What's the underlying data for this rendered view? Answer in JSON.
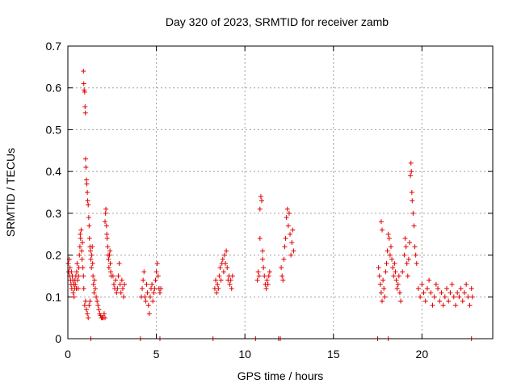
{
  "chart_data": {
    "type": "scatter",
    "title": "Day 320 of 2023, SRMTID for receiver zamb",
    "xlabel": "GPS time / hours",
    "ylabel": "SRMTID / TECUs",
    "xlim": [
      0,
      24
    ],
    "ylim": [
      0,
      0.7
    ],
    "x_ticks": [
      0,
      5,
      10,
      15,
      20
    ],
    "y_ticks": [
      0,
      0.1,
      0.2,
      0.3,
      0.4,
      0.5,
      0.6,
      0.7
    ],
    "x_tick_labels": [
      "0",
      "5",
      "10",
      "15",
      "20"
    ],
    "y_tick_labels": [
      "0",
      "0.1",
      "0.2",
      "0.3",
      "0.4",
      "0.5",
      "0.6",
      "0.7"
    ],
    "grid": true,
    "marker": "+",
    "marker_color": "#e00000",
    "series": [
      {
        "name": "SRMTID",
        "points": [
          [
            0.02,
            0.18
          ],
          [
            0.05,
            0.16
          ],
          [
            0.08,
            0.19
          ],
          [
            0.1,
            0.15
          ],
          [
            0.12,
            0.17
          ],
          [
            0.15,
            0.14
          ],
          [
            0.18,
            0.13
          ],
          [
            0.2,
            0.16
          ],
          [
            0.22,
            0.12
          ],
          [
            0.25,
            0.15
          ],
          [
            0.28,
            0.14
          ],
          [
            0.3,
            0.11
          ],
          [
            0.33,
            0.13
          ],
          [
            0.35,
            0.1
          ],
          [
            0.38,
            0.12
          ],
          [
            0.4,
            0.14
          ],
          [
            0.42,
            0.13
          ],
          [
            0.45,
            0.15
          ],
          [
            0.48,
            0.12
          ],
          [
            0.5,
            0.16
          ],
          [
            0.52,
            0.18
          ],
          [
            0.55,
            0.14
          ],
          [
            0.58,
            0.12
          ],
          [
            0.6,
            0.15
          ],
          [
            0.62,
            0.17
          ],
          [
            0.65,
            0.2
          ],
          [
            0.68,
            0.22
          ],
          [
            0.7,
            0.25
          ],
          [
            0.72,
            0.24
          ],
          [
            0.75,
            0.26
          ],
          [
            0.78,
            0.21
          ],
          [
            0.8,
            0.19
          ],
          [
            0.82,
            0.23
          ],
          [
            0.85,
            0.17
          ],
          [
            0.88,
            0.15
          ],
          [
            0.9,
            0.12
          ],
          [
            0.88,
            0.64
          ],
          [
            0.9,
            0.61
          ],
          [
            0.92,
            0.595
          ],
          [
            0.95,
            0.59
          ],
          [
            0.97,
            0.555
          ],
          [
            0.99,
            0.54
          ],
          [
            1.0,
            0.43
          ],
          [
            1.02,
            0.41
          ],
          [
            1.05,
            0.38
          ],
          [
            1.07,
            0.37
          ],
          [
            1.1,
            0.35
          ],
          [
            1.12,
            0.33
          ],
          [
            1.15,
            0.32
          ],
          [
            1.18,
            0.29
          ],
          [
            1.2,
            0.27
          ],
          [
            0.95,
            0.08
          ],
          [
            1.0,
            0.09
          ],
          [
            1.05,
            0.07
          ],
          [
            1.1,
            0.06
          ],
          [
            1.15,
            0.05
          ],
          [
            1.2,
            0.08
          ],
          [
            1.25,
            0.09
          ],
          [
            1.3,
            0.0
          ],
          [
            1.22,
            0.24
          ],
          [
            1.25,
            0.22
          ],
          [
            1.28,
            0.21
          ],
          [
            1.3,
            0.19
          ],
          [
            1.33,
            0.17
          ],
          [
            1.35,
            0.2
          ],
          [
            1.38,
            0.22
          ],
          [
            1.4,
            0.18
          ],
          [
            1.42,
            0.15
          ],
          [
            1.45,
            0.13
          ],
          [
            1.48,
            0.11
          ],
          [
            1.5,
            0.14
          ],
          [
            1.55,
            0.12
          ],
          [
            1.6,
            0.1
          ],
          [
            1.65,
            0.09
          ],
          [
            1.7,
            0.08
          ],
          [
            1.75,
            0.07
          ],
          [
            1.8,
            0.06
          ],
          [
            1.85,
            0.055
          ],
          [
            1.9,
            0.05
          ],
          [
            1.95,
            0.05
          ],
          [
            2.0,
            0.05
          ],
          [
            2.05,
            0.06
          ],
          [
            2.1,
            0.05
          ],
          [
            2.1,
            0.28
          ],
          [
            2.13,
            0.3
          ],
          [
            2.15,
            0.31
          ],
          [
            2.18,
            0.27
          ],
          [
            2.2,
            0.25
          ],
          [
            2.22,
            0.24
          ],
          [
            2.25,
            0.22
          ],
          [
            2.28,
            0.2
          ],
          [
            2.3,
            0.19
          ],
          [
            2.32,
            0.17
          ],
          [
            2.35,
            0.2
          ],
          [
            2.38,
            0.21
          ],
          [
            2.4,
            0.18
          ],
          [
            2.42,
            0.16
          ],
          [
            2.45,
            0.15
          ],
          [
            2.55,
            0.15
          ],
          [
            2.6,
            0.13
          ],
          [
            2.65,
            0.12
          ],
          [
            2.7,
            0.14
          ],
          [
            2.75,
            0.11
          ],
          [
            2.8,
            0.12
          ],
          [
            2.85,
            0.15
          ],
          [
            2.9,
            0.18
          ],
          [
            2.95,
            0.13
          ],
          [
            3.0,
            0.11
          ],
          [
            3.05,
            0.14
          ],
          [
            3.1,
            0.12
          ],
          [
            3.15,
            0.1
          ],
          [
            3.2,
            0.13
          ],
          [
            4.1,
            0.0
          ],
          [
            4.15,
            0.1
          ],
          [
            4.2,
            0.12
          ],
          [
            4.25,
            0.14
          ],
          [
            4.3,
            0.16
          ],
          [
            4.35,
            0.1
          ],
          [
            4.4,
            0.09
          ],
          [
            4.45,
            0.13
          ],
          [
            4.5,
            0.11
          ],
          [
            4.55,
            0.08
          ],
          [
            4.6,
            0.06
          ],
          [
            4.65,
            0.1
          ],
          [
            4.7,
            0.12
          ],
          [
            4.75,
            0.13
          ],
          [
            4.8,
            0.09
          ],
          [
            4.85,
            0.11
          ],
          [
            4.9,
            0.12
          ],
          [
            4.95,
            0.14
          ],
          [
            5.0,
            0.16
          ],
          [
            5.05,
            0.18
          ],
          [
            5.1,
            0.15
          ],
          [
            5.15,
            0.12
          ],
          [
            5.2,
            0.11
          ],
          [
            5.25,
            0.12
          ],
          [
            5.2,
            0.0
          ],
          [
            8.2,
            0.0
          ],
          [
            8.3,
            0.12
          ],
          [
            8.35,
            0.14
          ],
          [
            8.4,
            0.11
          ],
          [
            8.45,
            0.13
          ],
          [
            8.5,
            0.12
          ],
          [
            8.55,
            0.15
          ],
          [
            8.6,
            0.17
          ],
          [
            8.65,
            0.14
          ],
          [
            8.7,
            0.18
          ],
          [
            8.75,
            0.19
          ],
          [
            8.8,
            0.16
          ],
          [
            8.85,
            0.2
          ],
          [
            8.9,
            0.18
          ],
          [
            8.95,
            0.21
          ],
          [
            9.0,
            0.17
          ],
          [
            9.05,
            0.14
          ],
          [
            9.1,
            0.15
          ],
          [
            9.15,
            0.13
          ],
          [
            9.2,
            0.14
          ],
          [
            9.25,
            0.12
          ],
          [
            9.3,
            0.15
          ],
          [
            10.6,
            0.0
          ],
          [
            10.7,
            0.14
          ],
          [
            10.75,
            0.16
          ],
          [
            10.8,
            0.15
          ],
          [
            10.85,
            0.31
          ],
          [
            10.9,
            0.34
          ],
          [
            10.95,
            0.33
          ],
          [
            11.0,
            0.19
          ],
          [
            11.05,
            0.17
          ],
          [
            11.1,
            0.15
          ],
          [
            11.15,
            0.13
          ],
          [
            11.2,
            0.12
          ],
          [
            11.25,
            0.14
          ],
          [
            11.3,
            0.13
          ],
          [
            11.35,
            0.15
          ],
          [
            11.4,
            0.16
          ],
          [
            10.85,
            0.24
          ],
          [
            11.0,
            0.21
          ],
          [
            11.9,
            0.0
          ],
          [
            12.0,
            0.0
          ],
          [
            12.05,
            0.17
          ],
          [
            12.1,
            0.15
          ],
          [
            12.15,
            0.14
          ],
          [
            12.2,
            0.19
          ],
          [
            12.25,
            0.22
          ],
          [
            12.3,
            0.24
          ],
          [
            12.35,
            0.29
          ],
          [
            12.4,
            0.31
          ],
          [
            12.45,
            0.27
          ],
          [
            12.5,
            0.3
          ],
          [
            12.55,
            0.25
          ],
          [
            12.6,
            0.2
          ],
          [
            12.65,
            0.23
          ],
          [
            12.7,
            0.26
          ],
          [
            12.75,
            0.21
          ],
          [
            17.5,
            0.0
          ],
          [
            17.55,
            0.17
          ],
          [
            17.6,
            0.15
          ],
          [
            17.65,
            0.13
          ],
          [
            17.7,
            0.11
          ],
          [
            17.75,
            0.09
          ],
          [
            17.8,
            0.14
          ],
          [
            17.85,
            0.12
          ],
          [
            17.9,
            0.1
          ],
          [
            17.95,
            0.16
          ],
          [
            18.0,
            0.18
          ],
          [
            18.05,
            0.21
          ],
          [
            18.1,
            0.25
          ],
          [
            18.15,
            0.24
          ],
          [
            18.2,
            0.2
          ],
          [
            18.25,
            0.22
          ],
          [
            18.3,
            0.19
          ],
          [
            18.35,
            0.17
          ],
          [
            18.4,
            0.15
          ],
          [
            18.45,
            0.18
          ],
          [
            18.5,
            0.16
          ],
          [
            18.55,
            0.14
          ],
          [
            18.6,
            0.12
          ],
          [
            18.65,
            0.13
          ],
          [
            18.7,
            0.15
          ],
          [
            18.75,
            0.11
          ],
          [
            18.8,
            0.09
          ],
          [
            17.7,
            0.28
          ],
          [
            17.75,
            0.26
          ],
          [
            18.1,
            0.0
          ],
          [
            18.9,
            0.16
          ],
          [
            19.0,
            0.2
          ],
          [
            19.05,
            0.24
          ],
          [
            19.1,
            0.22
          ],
          [
            19.15,
            0.18
          ],
          [
            19.2,
            0.15
          ],
          [
            19.25,
            0.19
          ],
          [
            19.3,
            0.23
          ],
          [
            19.35,
            0.39
          ],
          [
            19.38,
            0.42
          ],
          [
            19.4,
            0.4
          ],
          [
            19.43,
            0.35
          ],
          [
            19.45,
            0.33
          ],
          [
            19.5,
            0.3
          ],
          [
            19.55,
            0.27
          ],
          [
            19.6,
            0.22
          ],
          [
            19.65,
            0.2
          ],
          [
            19.7,
            0.18
          ],
          [
            19.8,
            0.12
          ],
          [
            19.9,
            0.1
          ],
          [
            20.0,
            0.13
          ],
          [
            20.1,
            0.11
          ],
          [
            20.2,
            0.09
          ],
          [
            20.3,
            0.12
          ],
          [
            20.4,
            0.14
          ],
          [
            20.5,
            0.11
          ],
          [
            20.6,
            0.08
          ],
          [
            20.7,
            0.1
          ],
          [
            20.8,
            0.13
          ],
          [
            20.9,
            0.12
          ],
          [
            21.0,
            0.09
          ],
          [
            21.1,
            0.11
          ],
          [
            21.2,
            0.08
          ],
          [
            21.3,
            0.1
          ],
          [
            21.4,
            0.12
          ],
          [
            21.5,
            0.09
          ],
          [
            21.6,
            0.11
          ],
          [
            21.7,
            0.13
          ],
          [
            21.8,
            0.1
          ],
          [
            21.9,
            0.08
          ],
          [
            22.0,
            0.11
          ],
          [
            22.1,
            0.1
          ],
          [
            22.2,
            0.12
          ],
          [
            22.3,
            0.09
          ],
          [
            22.4,
            0.11
          ],
          [
            22.5,
            0.13
          ],
          [
            22.6,
            0.1
          ],
          [
            22.7,
            0.08
          ],
          [
            22.8,
            0.12
          ],
          [
            22.85,
            0.1
          ],
          [
            22.8,
            0.0
          ]
        ]
      }
    ]
  }
}
